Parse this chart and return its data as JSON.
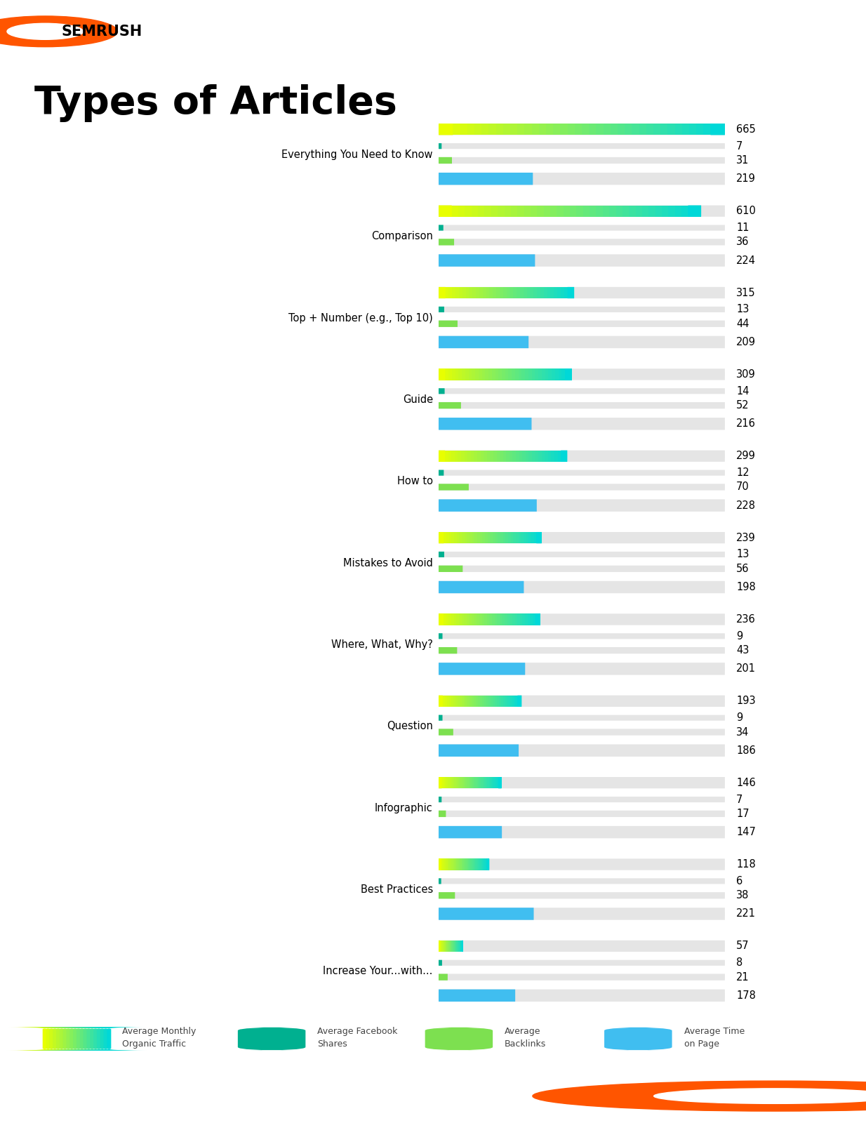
{
  "title": "Types of Articles",
  "categories": [
    "Everything You Need to Know",
    "Comparison",
    "Top + Number (e.g., Top 10)",
    "Guide",
    "How to",
    "Mistakes to Avoid",
    "Where, What, Why?",
    "Question",
    "Infographic",
    "Best Practices",
    "Increase Your...with..."
  ],
  "traffic": [
    665,
    610,
    315,
    309,
    299,
    239,
    236,
    193,
    146,
    118,
    57
  ],
  "facebook": [
    7,
    11,
    13,
    14,
    12,
    13,
    9,
    9,
    7,
    6,
    8
  ],
  "backlinks": [
    31,
    36,
    44,
    52,
    70,
    56,
    43,
    34,
    17,
    38,
    21
  ],
  "time": [
    219,
    224,
    209,
    216,
    228,
    198,
    201,
    186,
    147,
    221,
    178
  ],
  "max_traffic": 665,
  "traffic_grad_start": "#e8ff00",
  "traffic_grad_end": "#00d8d8",
  "facebook_color": "#00b090",
  "backlinks_color": "#7de050",
  "time_color": "#40bef0",
  "bar_bg_color": "#e5e5e5",
  "footer_bg": "#1c1c1c",
  "semrush_orange": "#ff5500",
  "legend_labels": [
    "Average Monthly\nOrganic Traffic",
    "Average Facebook\nShares",
    "Average\nBacklinks",
    "Average Time\non Page"
  ]
}
